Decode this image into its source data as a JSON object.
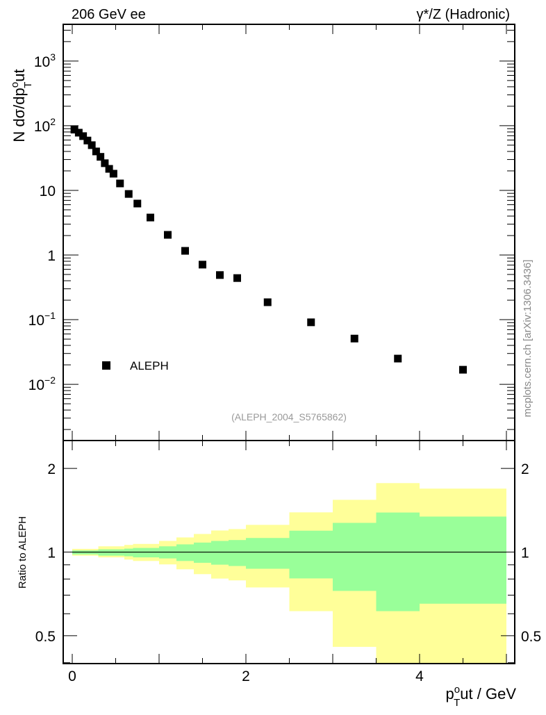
{
  "chart_data": [
    {
      "type": "scatter",
      "title_left": "206 GeV ee",
      "title_right": "γ*/Z (Hadronic)",
      "ylabel": {
        "main": "N dσ/dp",
        "sup": "o",
        "sub": "T",
        "tail": "ut"
      },
      "yscale": "log",
      "ylim": [
        0.00135,
        3700
      ],
      "xlim": [
        -0.104,
        5.096
      ],
      "yticks": [
        {
          "value": 1000,
          "base": "10",
          "exp": "3"
        },
        {
          "value": 100,
          "base": "10",
          "exp": "2"
        },
        {
          "value": 10,
          "base": "10",
          "exp": ""
        },
        {
          "value": 1,
          "base": "1",
          "exp": ""
        },
        {
          "value": 0.1,
          "base": "10",
          "exp": "−1"
        },
        {
          "value": 0.01,
          "base": "10",
          "exp": "−2"
        }
      ],
      "legend": {
        "label": "ALEPH",
        "placement": "bottom-left"
      },
      "annotation": "(ALEPH_2004_S5765862)",
      "series": [
        {
          "name": "ALEPH",
          "color": "#000000",
          "x": [
            0.025,
            0.075,
            0.125,
            0.175,
            0.225,
            0.275,
            0.325,
            0.375,
            0.425,
            0.475,
            0.55,
            0.65,
            0.75,
            0.9,
            1.1,
            1.3,
            1.5,
            1.7,
            1.9,
            2.25,
            2.75,
            3.25,
            3.75,
            4.5
          ],
          "y": [
            87,
            78,
            69,
            59,
            50,
            40,
            33,
            26.3,
            21.5,
            18.1,
            12.8,
            8.8,
            6.25,
            3.8,
            2.05,
            1.16,
            0.71,
            0.49,
            0.44,
            0.186,
            0.091,
            0.051,
            0.025,
            0.0168
          ]
        }
      ]
    },
    {
      "type": "area",
      "ylabel": "Ratio to ALEPH",
      "xlabel": {
        "main": "p",
        "sup": "o",
        "sub": "T",
        "tail": "ut / GeV"
      },
      "yscale": "log",
      "ylim": [
        0.397,
        2.52
      ],
      "xlim": [
        -0.104,
        5.096
      ],
      "yticks": [
        {
          "value": 2,
          "label": "2"
        },
        {
          "value": 1,
          "label": "1"
        },
        {
          "value": 0.5,
          "label": "0.5"
        }
      ],
      "xticks": [
        {
          "value": 0,
          "label": "0"
        },
        {
          "value": 2,
          "label": "2"
        },
        {
          "value": 4,
          "label": "4"
        }
      ],
      "reference_line": 1,
      "colors": {
        "outer_band": "#ffff99",
        "inner_band": "#99ff99"
      },
      "bin_edges": [
        0,
        0.3,
        0.6,
        0.7,
        1.0,
        1.2,
        1.4,
        1.6,
        1.8,
        2.0,
        2.5,
        3.0,
        3.5,
        4.0,
        5.0
      ],
      "outer_band": {
        "upper": [
          1.027,
          1.049,
          1.061,
          1.07,
          1.097,
          1.129,
          1.162,
          1.196,
          1.21,
          1.253,
          1.39,
          1.542,
          1.771,
          1.692
        ],
        "lower": [
          0.971,
          0.957,
          0.94,
          0.929,
          0.903,
          0.867,
          0.833,
          0.803,
          0.791,
          0.746,
          0.613,
          0.456,
          0.35,
          0.35
        ]
      },
      "inner_band": {
        "upper": [
          1.014,
          1.023,
          1.029,
          1.035,
          1.049,
          1.066,
          1.082,
          1.097,
          1.105,
          1.124,
          1.194,
          1.274,
          1.388,
          1.342
        ],
        "lower": [
          0.981,
          0.971,
          0.966,
          0.957,
          0.949,
          0.929,
          0.915,
          0.901,
          0.891,
          0.871,
          0.804,
          0.725,
          0.613,
          0.652
        ]
      }
    }
  ],
  "watermark": "mcplots.cern.ch [arXiv:1306.3436]"
}
